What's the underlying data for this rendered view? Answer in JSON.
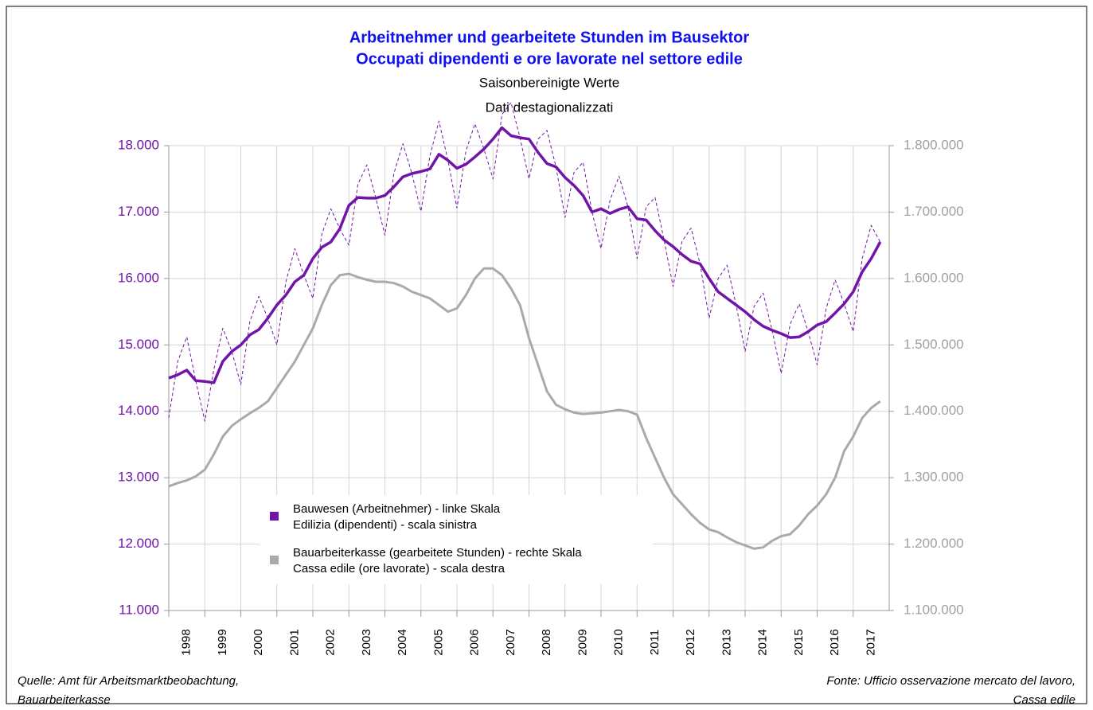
{
  "chart_data": {
    "type": "line",
    "title": [
      "Arbeitnehmer und gearbeitete Stunden im Bausektor",
      "Occupati dipendenti e ore lavorate nel settore edile"
    ],
    "subtitle": [
      "Saisonbereinigte Werte",
      "Dati destagionalizzati"
    ],
    "categories": [
      "1998",
      "1999",
      "2000",
      "2001",
      "2002",
      "2003",
      "2004",
      "2005",
      "2006",
      "2007",
      "2008",
      "2009",
      "2010",
      "2011",
      "2012",
      "2013",
      "2014",
      "2015",
      "2016",
      "2017"
    ],
    "xlim": [
      1998,
      2018
    ],
    "x": [
      1998,
      1998.25,
      1998.5,
      1998.75,
      1999,
      1999.25,
      1999.5,
      1999.75,
      2000,
      2000.25,
      2000.5,
      2000.75,
      2001,
      2001.25,
      2001.5,
      2001.75,
      2002,
      2002.25,
      2002.5,
      2002.75,
      2003,
      2003.25,
      2003.5,
      2003.75,
      2004,
      2004.25,
      2004.5,
      2004.75,
      2005,
      2005.25,
      2005.5,
      2005.75,
      2006,
      2006.25,
      2006.5,
      2006.75,
      2007,
      2007.25,
      2007.5,
      2007.75,
      2008,
      2008.25,
      2008.5,
      2008.75,
      2009,
      2009.25,
      2009.5,
      2009.75,
      2010,
      2010.25,
      2010.5,
      2010.75,
      2011,
      2011.25,
      2011.5,
      2011.75,
      2012,
      2012.25,
      2012.5,
      2012.75,
      2013,
      2013.25,
      2013.5,
      2013.75,
      2014,
      2014.25,
      2014.5,
      2014.75,
      2015,
      2015.25,
      2015.5,
      2015.75,
      2016,
      2016.25,
      2016.5,
      2016.75,
      2017,
      2017.25,
      2017.5,
      2017.75
    ],
    "ylim": [
      11000,
      18000
    ],
    "yticks": [
      {
        "value": 11000,
        "label": "11.000"
      },
      {
        "value": 12000,
        "label": "12.000"
      },
      {
        "value": 13000,
        "label": "13.000"
      },
      {
        "value": 14000,
        "label": "14.000"
      },
      {
        "value": 15000,
        "label": "15.000"
      },
      {
        "value": 16000,
        "label": "16.000"
      },
      {
        "value": 17000,
        "label": "17.000"
      },
      {
        "value": 18000,
        "label": "18.000"
      }
    ],
    "y2lim": [
      1100000,
      1800000
    ],
    "y2ticks": [
      {
        "value": 1100000,
        "label": "1.100.000"
      },
      {
        "value": 1200000,
        "label": "1.200.000"
      },
      {
        "value": 1300000,
        "label": "1.300.000"
      },
      {
        "value": 1400000,
        "label": "1.400.000"
      },
      {
        "value": 1500000,
        "label": "1.500.000"
      },
      {
        "value": 1600000,
        "label": "1.600.000"
      },
      {
        "value": 1700000,
        "label": "1.700.000"
      },
      {
        "value": 1800000,
        "label": "1.800.000"
      }
    ],
    "grid": true,
    "series": [
      {
        "name": "Bauwesen (Arbeitnehmer) - linke Skala\nEdilizia (dipendenti) - scala sinistra",
        "color": "#7015a8",
        "width": 3.5,
        "values": [
          14500,
          14550,
          14620,
          14460,
          14450,
          14430,
          14750,
          14900,
          15000,
          15150,
          15230,
          15400,
          15600,
          15750,
          15950,
          16050,
          16300,
          16470,
          16550,
          16750,
          17100,
          17220,
          17210,
          17210,
          17250,
          17380,
          17530,
          17580,
          17610,
          17650,
          17870,
          17780,
          17660,
          17720,
          17830,
          17950,
          18100,
          18270,
          18150,
          18120,
          18100,
          17900,
          17730,
          17680,
          17520,
          17400,
          17250,
          17000,
          17050,
          16980,
          17040,
          17080,
          16900,
          16880,
          16720,
          16580,
          16480,
          16360,
          16260,
          16220,
          16000,
          15800,
          15700,
          15600,
          15500,
          15380,
          15280,
          15220,
          15170,
          15110,
          15120,
          15200,
          15300,
          15350,
          15480,
          15620,
          15800,
          16100,
          16300,
          16550
        ]
      },
      {
        "name": "Bauarbeiterkasse (gearbeitete Stunden) - rechte Skala\nCassa edile (ore lavorate) - scala destra",
        "color": "#aaaaaa",
        "width": 3,
        "axis": "y2",
        "values": [
          1287000,
          1292000,
          1296000,
          1302000,
          1312000,
          1335000,
          1362000,
          1378000,
          1388000,
          1397000,
          1405000,
          1415000,
          1435000,
          1455000,
          1475000,
          1500000,
          1525000,
          1560000,
          1590000,
          1605000,
          1607000,
          1602000,
          1598000,
          1595000,
          1595000,
          1593000,
          1588000,
          1580000,
          1575000,
          1570000,
          1560000,
          1550000,
          1555000,
          1575000,
          1600000,
          1615000,
          1615000,
          1605000,
          1585000,
          1560000,
          1510000,
          1470000,
          1430000,
          1410000,
          1403000,
          1398000,
          1396000,
          1397000,
          1398000,
          1400000,
          1402000,
          1400000,
          1395000,
          1360000,
          1330000,
          1300000,
          1275000,
          1260000,
          1245000,
          1232000,
          1222000,
          1218000,
          1210000,
          1203000,
          1198000,
          1193000,
          1195000,
          1205000,
          1212000,
          1215000,
          1228000,
          1245000,
          1258000,
          1275000,
          1300000,
          1340000,
          1362000,
          1390000,
          1405000,
          1415000
        ]
      },
      {
        "color": "#7015a8",
        "width": 1,
        "dash": true,
        "values": [
          13900,
          14750,
          15120,
          14460,
          13850,
          14630,
          15250,
          14900,
          14400,
          15350,
          15730,
          15400,
          15000,
          15950,
          16450,
          16050,
          15700,
          16670,
          17050,
          16750,
          16500,
          17420,
          17710,
          17210,
          16650,
          17580,
          18030,
          17580,
          17010,
          17850,
          18370,
          17780,
          17060,
          17920,
          18330,
          17950,
          17500,
          18470,
          18650,
          18120,
          17500,
          18100,
          18230,
          17680,
          16920,
          17600,
          17750,
          17000,
          16450,
          17180,
          17540,
          17080,
          16300,
          17080,
          17220,
          16580,
          15880,
          16560,
          16760,
          16220,
          15400,
          16000,
          16200,
          15600,
          14900,
          15580,
          15780,
          15220,
          14570,
          15310,
          15620,
          15200,
          14700,
          15550,
          15980,
          15620,
          15200,
          16300,
          16800,
          16550
        ]
      }
    ],
    "source_left": "Quelle: Amt für Arbeitsmarktbeobachtung,\nBauarbeiterkasse",
    "source_right": "Fonte: Ufficio osservazione mercato del lavoro,\nCassa edile"
  }
}
